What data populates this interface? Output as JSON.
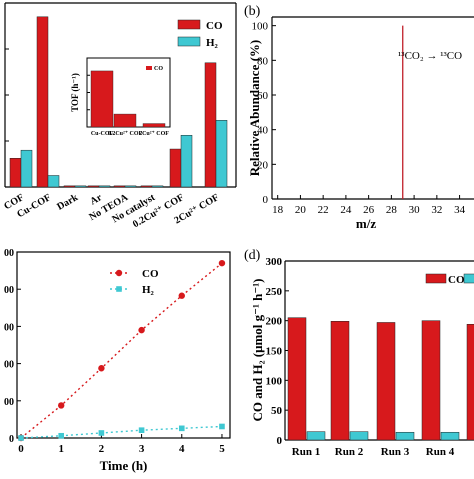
{
  "colors": {
    "red": "#d7191c",
    "cyan": "#3fc8d2",
    "axis": "#000000"
  },
  "chart_data": [
    {
      "panel": "a",
      "type": "bar",
      "categories": [
        "COF",
        "Cu-COF",
        "Dark",
        "Ar",
        "No TEOA",
        "No catalyst",
        "0.2Cu²⁺ COF",
        "2Cu²⁺ COF"
      ],
      "series": [
        {
          "name": "CO",
          "values": [
            25,
            148,
            1,
            1,
            1,
            1,
            33,
            108
          ]
        },
        {
          "name": "H₂",
          "values": [
            32,
            10,
            1,
            1,
            1,
            1,
            45,
            58
          ]
        }
      ],
      "ylim": [
        0,
        160
      ],
      "legend": {
        "position": "top-right",
        "items": [
          "CO",
          "H₂"
        ]
      },
      "inset": {
        "type": "bar",
        "ylabel": "TOF (h⁻¹)",
        "categories": [
          "Cu-COF",
          "0.2Cu²⁺ COF",
          "2Cu²⁺ COF"
        ],
        "series": [
          {
            "name": "CO",
            "values": [
              6.5,
              1.5,
              0.4
            ]
          }
        ],
        "ylim": [
          0,
          8
        ],
        "legend": {
          "position": "top-right",
          "items": [
            "CO"
          ]
        }
      }
    },
    {
      "panel": "b",
      "label": "(b)",
      "type": "line",
      "xlabel": "m/z",
      "ylabel": "Relative Abundance (%)",
      "xticks": [
        "18",
        "20",
        "22",
        "24",
        "26",
        "28",
        "30",
        "32",
        "34",
        "36"
      ],
      "yticks": [
        "0",
        "20",
        "40",
        "60",
        "80",
        "100"
      ],
      "xlim": [
        17.5,
        36.5
      ],
      "ylim": [
        0,
        105
      ],
      "peaks": [
        {
          "x": 29,
          "y": 100
        }
      ],
      "annotation": "¹³CO₂ → ¹³CO"
    },
    {
      "panel": "c",
      "type": "scatter",
      "xlabel": "Time (h)",
      "xticks": [
        "0",
        "1",
        "2",
        "3",
        "4",
        "5"
      ],
      "yticks_visible": [
        "0",
        "00",
        "00",
        "00",
        "00",
        "00"
      ],
      "xlim": [
        -0.1,
        5.2
      ],
      "ylim": [
        0,
        100
      ],
      "legend": {
        "position": "top-center",
        "items": [
          "CO",
          "H₂"
        ]
      },
      "series": [
        {
          "name": "CO",
          "x": [
            0,
            1,
            2,
            3,
            4,
            5
          ],
          "values": [
            0,
            17.5,
            37.5,
            58,
            76.5,
            94
          ]
        },
        {
          "name": "H₂",
          "x": [
            0,
            1,
            2,
            3,
            4,
            5
          ],
          "values": [
            0,
            1.2,
            2.7,
            4.2,
            5.2,
            6.2
          ]
        }
      ]
    },
    {
      "panel": "d",
      "label": "(d)",
      "type": "bar",
      "ylabel": "CO and H₂ (μmol g⁻¹ h⁻¹)",
      "categories": [
        "Run 1",
        "Run 2",
        "Run 3",
        "Run 4",
        ""
      ],
      "yticks": [
        "0",
        "50",
        "100",
        "150",
        "200",
        "250",
        "300"
      ],
      "ylim": [
        0,
        300
      ],
      "legend": {
        "position": "top-right",
        "items": [
          "CO",
          ""
        ]
      },
      "series": [
        {
          "name": "CO",
          "values": [
            205,
            199,
            197,
            200,
            194
          ]
        },
        {
          "name": "H₂",
          "values": [
            14,
            14,
            13,
            13,
            13
          ]
        }
      ]
    }
  ]
}
